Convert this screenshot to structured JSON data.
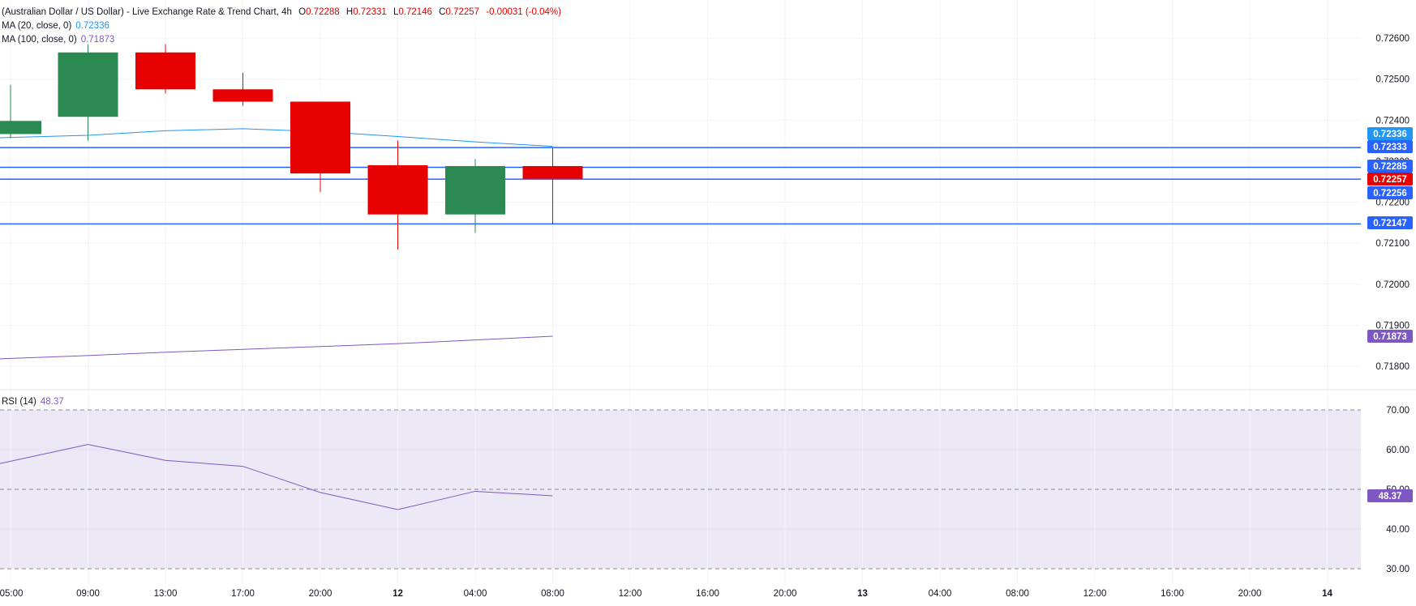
{
  "header": {
    "title": "(Australian Dollar / US Dollar) - Live Exchange Rate & Trend Chart, 4h",
    "ohlc": [
      {
        "label": "O",
        "value": "0.72288"
      },
      {
        "label": "H",
        "value": "0.72331"
      },
      {
        "label": "L",
        "value": "0.72146"
      },
      {
        "label": "C",
        "value": "0.72257"
      }
    ],
    "change": "-0.00031 (-0.04%)"
  },
  "indicators": {
    "ma20": {
      "label": "MA (20, close, 0)",
      "value": "0.72336",
      "color": "#2196f3"
    },
    "ma100": {
      "label": "MA (100, close, 0)",
      "value": "0.71873",
      "color": "#7e57c2"
    },
    "rsi": {
      "label": "RSI (14)",
      "value": "48.37",
      "color": "#7e57c2"
    }
  },
  "colors": {
    "up": "#2a8a52",
    "down": "#e60000",
    "hline": "#2962ff",
    "text": "#131722",
    "grid": "#f0f3fa",
    "rsi_band": "#ede8f6"
  },
  "chart_data": [
    {
      "type": "candlestick",
      "title": "(Australian Dollar / US Dollar) - Live Exchange Rate & Trend Chart, 4h",
      "timeframe": "4h",
      "x_ticks": [
        "05:00",
        "09:00",
        "13:00",
        "17:00",
        "20:00",
        "12",
        "04:00",
        "08:00",
        "12:00",
        "16:00",
        "20:00",
        "13",
        "04:00",
        "08:00",
        "12:00",
        "16:00",
        "20:00",
        "14"
      ],
      "y_ticks": [
        "0.72600",
        "0.72500",
        "0.72400",
        "0.72300",
        "0.72200",
        "0.72100",
        "0.72000",
        "0.71900",
        "0.71800"
      ],
      "ylim": [
        0.71755,
        0.72645
      ],
      "candles": [
        {
          "open": 0.72366,
          "high": 0.72486,
          "low": 0.72356,
          "close": 0.72398
        },
        {
          "open": 0.72408,
          "high": 0.72585,
          "low": 0.7235,
          "close": 0.72565
        },
        {
          "open": 0.72565,
          "high": 0.72585,
          "low": 0.72465,
          "close": 0.72475
        },
        {
          "open": 0.72475,
          "high": 0.72515,
          "low": 0.72435,
          "close": 0.72445
        },
        {
          "open": 0.72445,
          "high": 0.72445,
          "low": 0.72225,
          "close": 0.7227
        },
        {
          "open": 0.7229,
          "high": 0.7235,
          "low": 0.72085,
          "close": 0.7217
        },
        {
          "open": 0.7217,
          "high": 0.72305,
          "low": 0.72125,
          "close": 0.72288
        },
        {
          "open": 0.72288,
          "high": 0.72331,
          "low": 0.72146,
          "close": 0.72257
        }
      ],
      "ma20": [
        0.72357,
        0.72363,
        0.72374,
        0.72379,
        0.72372,
        0.7236,
        0.72347,
        0.72336
      ],
      "ma100": [
        0.71818,
        0.71826,
        0.71834,
        0.71841,
        0.71848,
        0.71855,
        0.71864,
        0.71873
      ],
      "horizontal_lines": [
        0.72333,
        0.72285,
        0.72256,
        0.72147
      ],
      "price_labels": [
        {
          "value": "0.72336",
          "color": "#2196f3"
        },
        {
          "value": "0.72333",
          "color": "#2962ff"
        },
        {
          "value": "0.72285",
          "color": "#2962ff"
        },
        {
          "value": "0.72257",
          "color": "#e60000"
        },
        {
          "value": "0.72256",
          "color": "#2962ff"
        },
        {
          "value": "0.72147",
          "color": "#2962ff"
        },
        {
          "value": "0.71873",
          "color": "#7e57c2"
        }
      ]
    },
    {
      "type": "line",
      "title": "RSI (14)",
      "y_ticks": [
        "70.00",
        "60.00",
        "50.00",
        "40.00",
        "30.00"
      ],
      "ylim": [
        30,
        70
      ],
      "band": [
        30,
        70
      ],
      "midline": 50,
      "values": [
        56.5,
        61.3,
        57.3,
        55.8,
        49.2,
        44.9,
        49.5,
        48.37
      ],
      "last_label": "48.37"
    }
  ]
}
